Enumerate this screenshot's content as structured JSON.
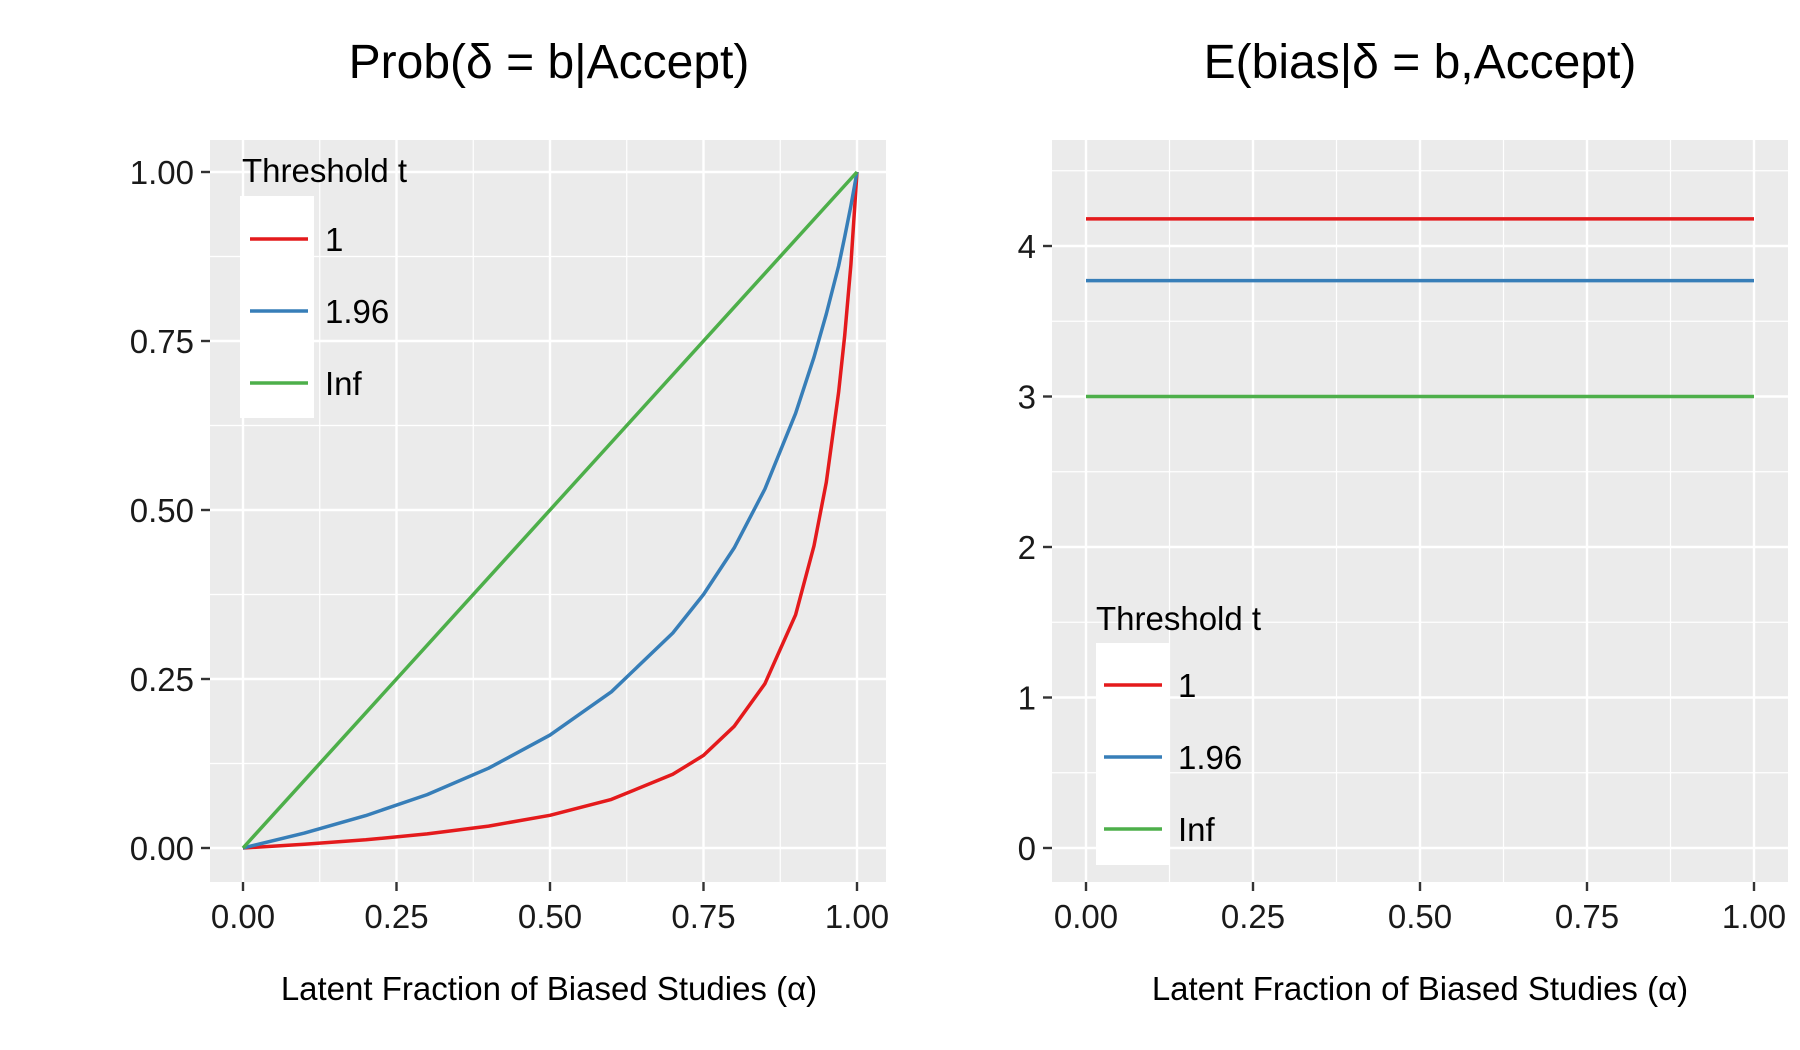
{
  "chart_data": [
    {
      "type": "line",
      "title": "Prob(δ = b|Accept)",
      "xlabel": "Latent Fraction of Biased Studies (α)",
      "ylabel": "",
      "xlim": [
        0,
        1
      ],
      "ylim": [
        0,
        1
      ],
      "x_ticks": [
        "0.00",
        "0.25",
        "0.50",
        "0.75",
        "1.00"
      ],
      "y_ticks": [
        "0.00",
        "0.25",
        "0.50",
        "0.75",
        "1.00"
      ],
      "y_tick_values": [
        0,
        0.25,
        0.5,
        0.75,
        1
      ],
      "grid": true,
      "legend": {
        "title": "Threshold t",
        "position": "top-left"
      },
      "series": [
        {
          "name": "1",
          "color": "#E41A1C",
          "x": [
            0,
            0.1,
            0.2,
            0.3,
            0.4,
            0.5,
            0.6,
            0.7,
            0.75,
            0.8,
            0.85,
            0.9,
            0.93,
            0.95,
            0.97,
            0.98,
            0.99,
            1.0
          ],
          "y": [
            0,
            0.0054,
            0.0121,
            0.0208,
            0.0324,
            0.0484,
            0.0719,
            0.109,
            0.137,
            0.18,
            0.243,
            0.345,
            0.447,
            0.541,
            0.674,
            0.758,
            0.863,
            1.0
          ]
        },
        {
          "name": "1.96",
          "color": "#377EB8",
          "x": [
            0,
            0.1,
            0.2,
            0.3,
            0.4,
            0.5,
            0.6,
            0.7,
            0.75,
            0.8,
            0.85,
            0.9,
            0.93,
            0.95,
            0.97,
            0.98,
            0.99,
            1.0
          ],
          "y": [
            0,
            0.022,
            0.048,
            0.079,
            0.118,
            0.167,
            0.231,
            0.318,
            0.375,
            0.444,
            0.531,
            0.643,
            0.726,
            0.79,
            0.861,
            0.904,
            0.95,
            1.0
          ]
        },
        {
          "name": "Inf",
          "color": "#4DAF4A",
          "x": [
            0,
            1
          ],
          "y": [
            0,
            1
          ]
        }
      ]
    },
    {
      "type": "line",
      "title": "E(bias|δ = b,Accept)",
      "xlabel": "Latent Fraction of Biased Studies (α)",
      "ylabel": "",
      "xlim": [
        0,
        1
      ],
      "ylim": [
        -0.2,
        4.5
      ],
      "x_ticks": [
        "0.00",
        "0.25",
        "0.50",
        "0.75",
        "1.00"
      ],
      "y_ticks": [
        "0",
        "1",
        "2",
        "3",
        "4"
      ],
      "y_tick_values": [
        0,
        1,
        2,
        3,
        4
      ],
      "grid": true,
      "legend": {
        "title": "Threshold t",
        "position": "bottom-left"
      },
      "series": [
        {
          "name": "1",
          "color": "#E41A1C",
          "x": [
            0,
            1
          ],
          "y": [
            4.18,
            4.18
          ]
        },
        {
          "name": "1.96",
          "color": "#377EB8",
          "x": [
            0,
            1
          ],
          "y": [
            3.77,
            3.77
          ]
        },
        {
          "name": "Inf",
          "color": "#4DAF4A",
          "x": [
            0,
            1
          ],
          "y": [
            3.0,
            3.0
          ]
        }
      ]
    }
  ]
}
